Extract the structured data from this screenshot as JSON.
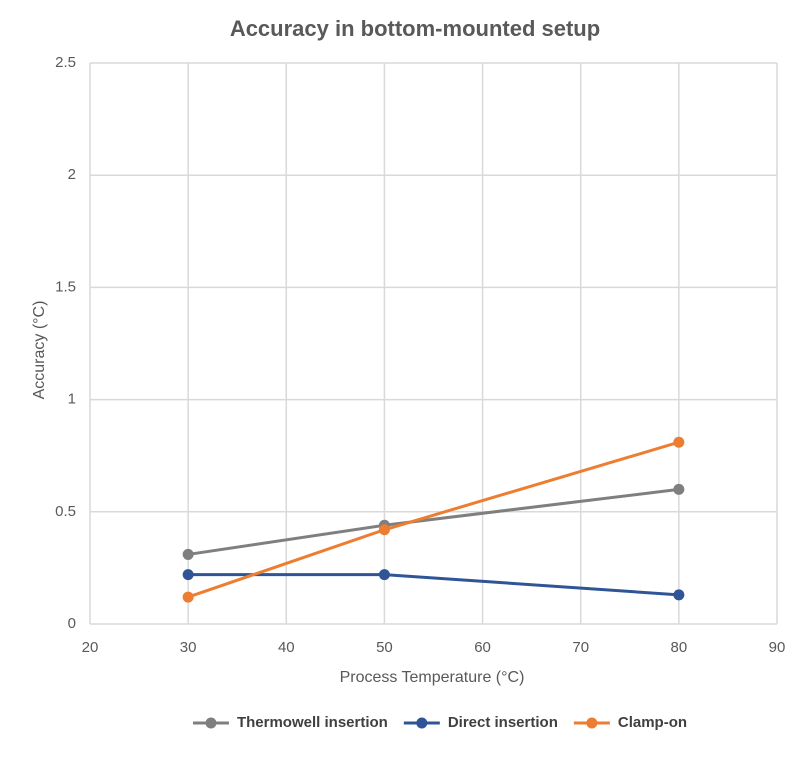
{
  "chart_data": {
    "type": "line",
    "title": "Accuracy in bottom-mounted setup",
    "x_label": "Process Temperature (°C)",
    "y_label": "Accuracy (°C)",
    "x": [
      30,
      50,
      80
    ],
    "series": [
      {
        "name": "Thermowell insertion",
        "color": "#7f7f7f",
        "values": [
          0.31,
          0.44,
          0.6
        ]
      },
      {
        "name": "Direct insertion",
        "color": "#2f5597",
        "values": [
          0.22,
          0.22,
          0.13
        ]
      },
      {
        "name": "Clamp-on",
        "color": "#ed7d31",
        "values": [
          0.12,
          0.42,
          0.81
        ]
      }
    ],
    "xlim": [
      20,
      90
    ],
    "xticks": [
      20,
      30,
      40,
      50,
      60,
      70,
      80,
      90
    ],
    "ylim": [
      0,
      2.5
    ],
    "yticks": [
      0,
      0.5,
      1,
      1.5,
      2,
      2.5
    ],
    "grid": true,
    "legend": "bottom"
  }
}
